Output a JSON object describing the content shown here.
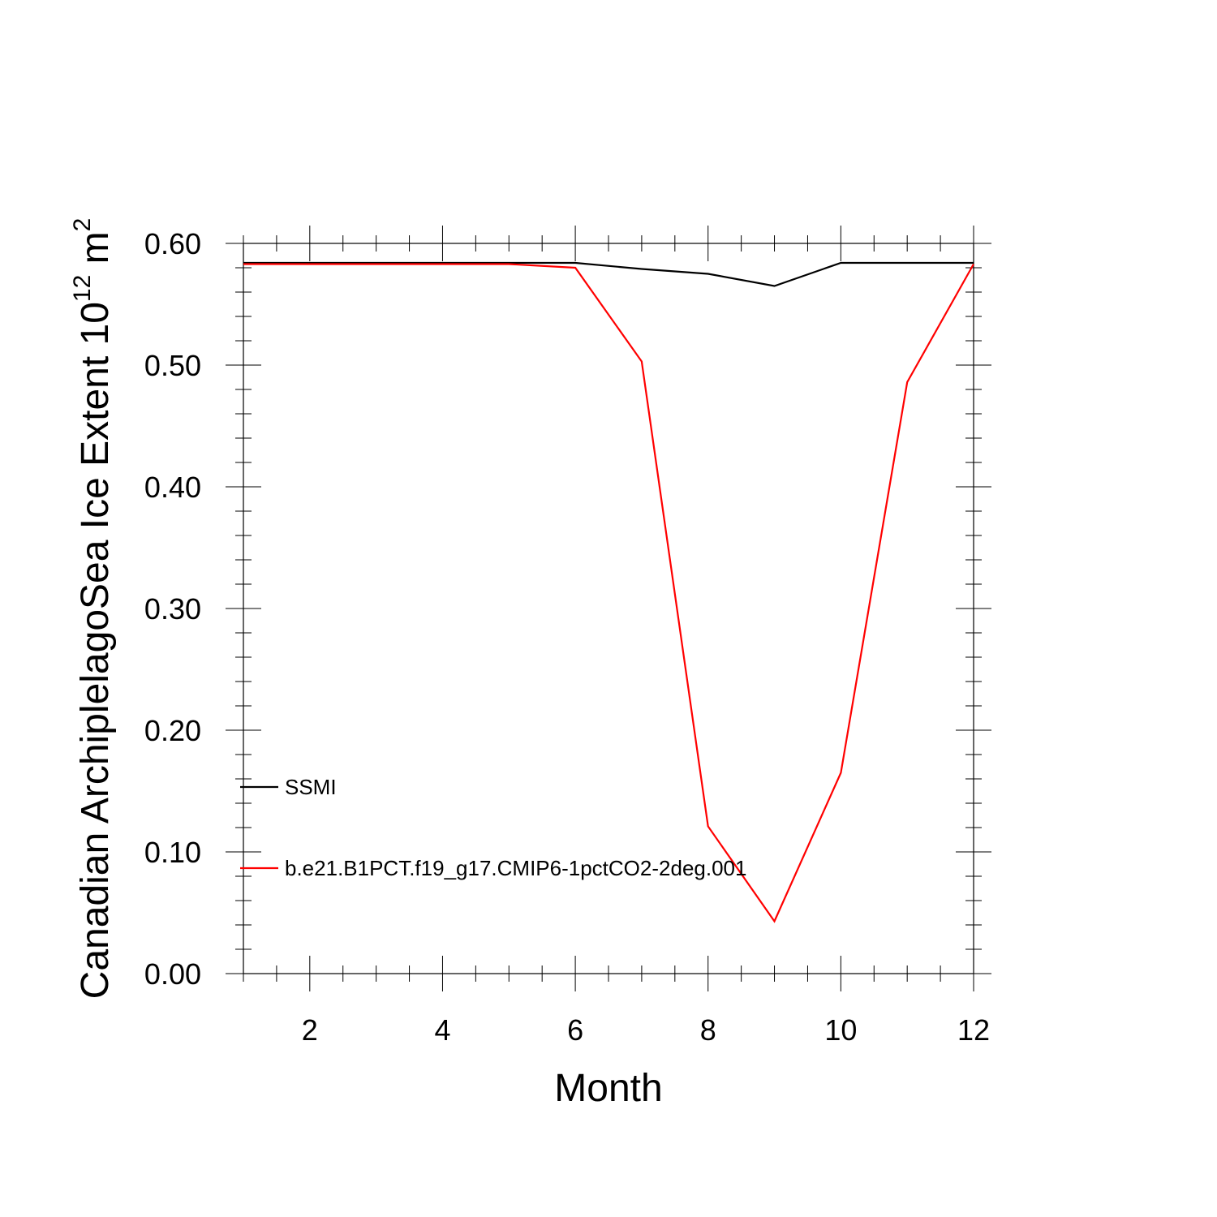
{
  "chart_data": {
    "type": "line",
    "xlabel": "Month",
    "ylabel": {
      "text": "Canadian ArchiplelagoSea Ice Extent 10",
      "exp": "12",
      "unit": " m",
      "unit_exp": "2"
    },
    "xlim": [
      1,
      12
    ],
    "ylim": [
      0,
      0.6
    ],
    "xticks": [
      2,
      4,
      6,
      8,
      10,
      12
    ],
    "yticks": [
      0.0,
      0.1,
      0.2,
      0.3,
      0.4,
      0.5,
      0.6
    ],
    "ytick_labels": [
      "0.00",
      "0.10",
      "0.20",
      "0.30",
      "0.40",
      "0.50",
      "0.60"
    ],
    "grid": false,
    "legend_position": "lower-left",
    "series": [
      {
        "name": "SSMI",
        "color": "#000000",
        "x": [
          1,
          2,
          3,
          4,
          5,
          6,
          7,
          8,
          9,
          10,
          11,
          12
        ],
        "y": [
          0.584,
          0.584,
          0.584,
          0.584,
          0.584,
          0.584,
          0.579,
          0.575,
          0.565,
          0.584,
          0.584,
          0.584
        ]
      },
      {
        "name": "b.e21.B1PCT.f19_g17.CMIP6-1pctCO2-2deg.001",
        "color": "#ff0000",
        "x": [
          1,
          2,
          3,
          4,
          5,
          6,
          7,
          8,
          9,
          10,
          11,
          12
        ],
        "y": [
          0.583,
          0.583,
          0.583,
          0.583,
          0.583,
          0.58,
          0.503,
          0.121,
          0.043,
          0.165,
          0.486,
          0.583
        ]
      }
    ]
  }
}
